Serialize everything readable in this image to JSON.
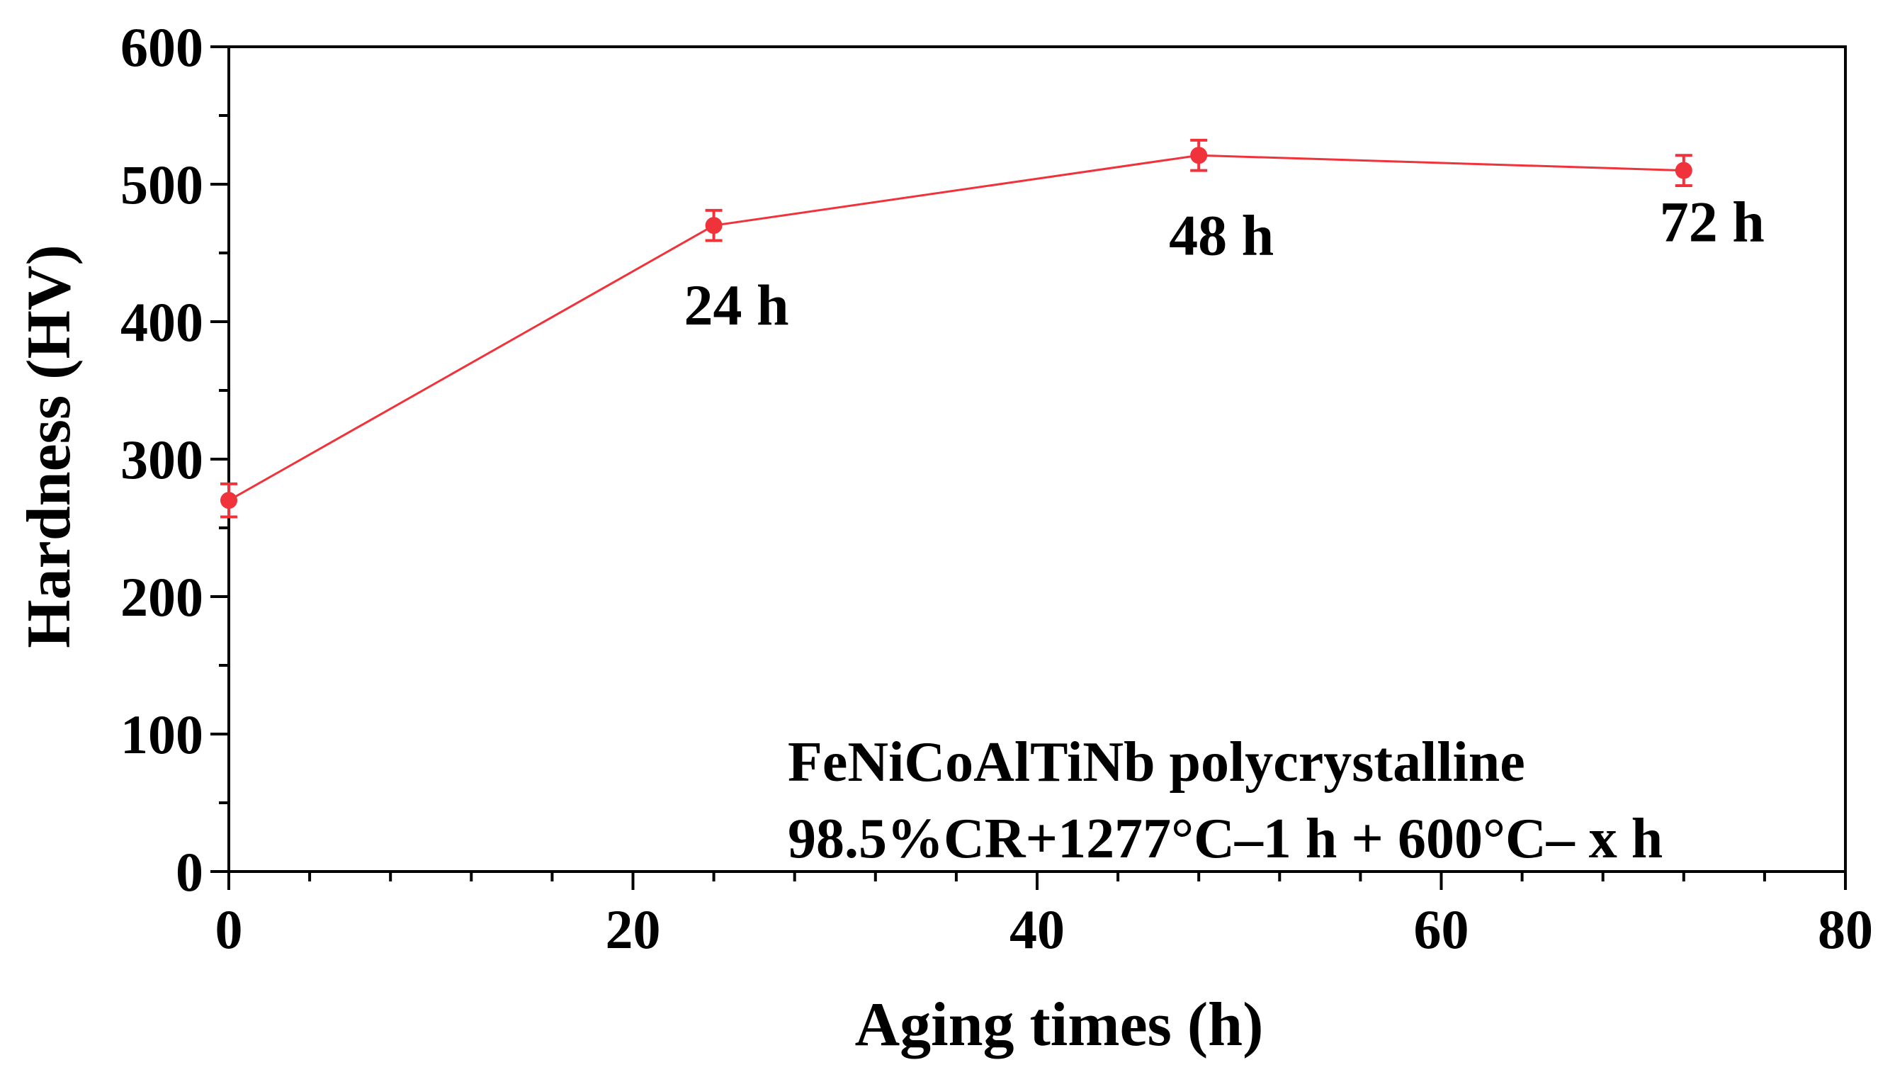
{
  "chart_data": {
    "type": "line",
    "title": "",
    "xlabel": "Aging times (h)",
    "ylabel": "Hardness (HV)",
    "xlim": [
      0,
      80
    ],
    "ylim": [
      0,
      600
    ],
    "x_ticks": [
      0,
      20,
      40,
      60,
      80
    ],
    "y_ticks": [
      0,
      100,
      200,
      300,
      400,
      500,
      600
    ],
    "x_minor_step": 4,
    "y_minor_step": 50,
    "grid": false,
    "legend": "none",
    "series": [
      {
        "color": "#f0333b",
        "marker": "circle",
        "error_bars": true,
        "points": [
          {
            "x": 0,
            "y": 270,
            "err": 12,
            "label": ""
          },
          {
            "x": 24,
            "y": 470,
            "err": 11,
            "label": "24 h"
          },
          {
            "x": 48,
            "y": 521,
            "err": 11,
            "label": "48 h"
          },
          {
            "x": 72,
            "y": 510,
            "err": 11,
            "label": "72 h"
          }
        ]
      }
    ],
    "annotations": [
      "FeNiCoAlTiNb polycrystalline",
      "98.5%CR+1277°C–1 h + 600°C– x h"
    ]
  }
}
